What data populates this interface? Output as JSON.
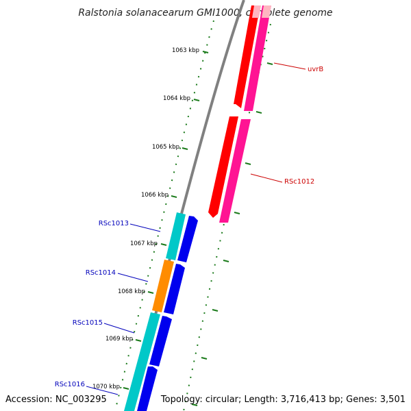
{
  "title": "Ralstonia solanacearum GMI1000, complete genome",
  "footer": {
    "accession": "Accession: NC_003295",
    "topology": "Topology: circular; Length: 3,716,413 bp; Genes: 3,501"
  },
  "ruler_labels": [
    "1063 kbp",
    "1064 kbp",
    "1065 kbp",
    "1066 kbp",
    "1067 kbp",
    "1068 kbp",
    "1069 kbp",
    "1070 kbp"
  ],
  "colors": {
    "backbone": "#808080",
    "ruler": "#1a7a1a",
    "red": "#ff0000",
    "pink": "#ff1493",
    "cyan": "#00c8c8",
    "blue": "#0000ee",
    "orange": "#ff8c00",
    "blue_label": "#0000bb",
    "red_label": "#cc0000"
  },
  "genes": [
    {
      "label": "uvrB",
      "color": "red"
    },
    {
      "label": "RSc1012",
      "color": "red"
    },
    {
      "label": "RSc1013",
      "color": "blue"
    },
    {
      "label": "RSc1014",
      "color": "blue"
    },
    {
      "label": "RSc1015",
      "color": "blue"
    },
    {
      "label": "RSc1016",
      "color": "blue"
    }
  ]
}
